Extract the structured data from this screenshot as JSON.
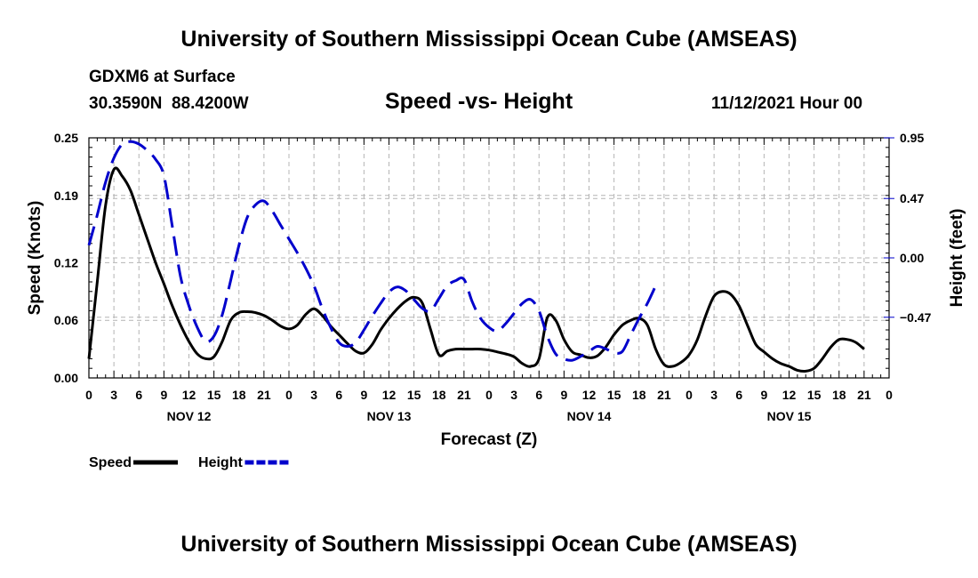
{
  "page": {
    "title_top": "University of Southern Mississippi Ocean Cube (AMSEAS)",
    "title_bottom": "University of Southern Mississippi Ocean Cube (AMSEAS)",
    "station": "GDXM6 at Surface",
    "coords": "30.3590N  88.4200W",
    "subtitle": "Speed -vs- Height",
    "timestamp": "11/12/2021 Hour 00"
  },
  "chart_data": {
    "type": "line",
    "title": "Speed -vs- Height",
    "xlabel": "Forecast (Z)",
    "ylabel_left": "Speed (Knots)",
    "ylabel_right": "Height (feet)",
    "x_range_hours": [
      0,
      96
    ],
    "left_ylim": [
      0,
      0.25
    ],
    "right_ylim": [
      -0.95,
      0.95
    ],
    "left_ticks": [
      0.0,
      0.06,
      0.12,
      0.19,
      0.25
    ],
    "left_tick_labels": [
      "0.00",
      "0.06",
      "0.12",
      "0.19",
      "0.25"
    ],
    "right_ticks": [
      -0.47,
      0.0,
      0.47,
      0.95
    ],
    "right_tick_labels": [
      "−0.47",
      "0.00",
      "0.47",
      "0.95"
    ],
    "x_ticks_hours": [
      0,
      3,
      6,
      9,
      12,
      15,
      18,
      21,
      24,
      27,
      30,
      33,
      36,
      39,
      42,
      45,
      48,
      51,
      54,
      57,
      60,
      63,
      66,
      69,
      72,
      75,
      78,
      81,
      84,
      87,
      90,
      93,
      96
    ],
    "x_tick_labels": [
      "0",
      "3",
      "6",
      "9",
      "12",
      "15",
      "18",
      "21",
      "0",
      "3",
      "6",
      "9",
      "12",
      "15",
      "18",
      "21",
      "0",
      "3",
      "6",
      "9",
      "12",
      "15",
      "18",
      "21",
      "0",
      "3",
      "6",
      "9",
      "12",
      "15",
      "18",
      "21",
      "0"
    ],
    "day_labels": [
      {
        "hour": 12,
        "label": "NOV 12"
      },
      {
        "hour": 36,
        "label": "NOV 13"
      },
      {
        "hour": 60,
        "label": "NOV 14"
      },
      {
        "hour": 84,
        "label": "NOV 15"
      }
    ],
    "grid": true,
    "legend": [
      {
        "name": "Speed",
        "color": "#000000",
        "style": "solid"
      },
      {
        "name": "Height",
        "color": "#0000cc",
        "style": "dashed"
      }
    ],
    "series": [
      {
        "name": "Speed",
        "axis": "left",
        "units": "knots",
        "color": "#000000",
        "points": [
          [
            0,
            0.02
          ],
          [
            1,
            0.1
          ],
          [
            2,
            0.18
          ],
          [
            3,
            0.217
          ],
          [
            4,
            0.21
          ],
          [
            5,
            0.195
          ],
          [
            6,
            0.17
          ],
          [
            7,
            0.145
          ],
          [
            8,
            0.12
          ],
          [
            9,
            0.098
          ],
          [
            10,
            0.075
          ],
          [
            11,
            0.055
          ],
          [
            12,
            0.038
          ],
          [
            13,
            0.025
          ],
          [
            14,
            0.02
          ],
          [
            15,
            0.022
          ],
          [
            16,
            0.038
          ],
          [
            17,
            0.06
          ],
          [
            18,
            0.068
          ],
          [
            19,
            0.069
          ],
          [
            20,
            0.068
          ],
          [
            21,
            0.065
          ],
          [
            22,
            0.06
          ],
          [
            23,
            0.054
          ],
          [
            24,
            0.051
          ],
          [
            25,
            0.055
          ],
          [
            26,
            0.066
          ],
          [
            27,
            0.072
          ],
          [
            28,
            0.065
          ],
          [
            29,
            0.054
          ],
          [
            30,
            0.045
          ],
          [
            31,
            0.036
          ],
          [
            32,
            0.028
          ],
          [
            33,
            0.026
          ],
          [
            34,
            0.035
          ],
          [
            35,
            0.05
          ],
          [
            36,
            0.062
          ],
          [
            37,
            0.072
          ],
          [
            38,
            0.08
          ],
          [
            39,
            0.084
          ],
          [
            40,
            0.078
          ],
          [
            41,
            0.05
          ],
          [
            42,
            0.024
          ],
          [
            43,
            0.028
          ],
          [
            44,
            0.03
          ],
          [
            45,
            0.03
          ],
          [
            46,
            0.03
          ],
          [
            47,
            0.03
          ],
          [
            48,
            0.029
          ],
          [
            49,
            0.027
          ],
          [
            50,
            0.025
          ],
          [
            51,
            0.022
          ],
          [
            52,
            0.015
          ],
          [
            53,
            0.012
          ],
          [
            54,
            0.02
          ],
          [
            55,
            0.063
          ],
          [
            56,
            0.06
          ],
          [
            57,
            0.04
          ],
          [
            58,
            0.027
          ],
          [
            59,
            0.024
          ],
          [
            60,
            0.021
          ],
          [
            61,
            0.023
          ],
          [
            62,
            0.032
          ],
          [
            63,
            0.045
          ],
          [
            64,
            0.055
          ],
          [
            65,
            0.06
          ],
          [
            66,
            0.062
          ],
          [
            67,
            0.055
          ],
          [
            68,
            0.03
          ],
          [
            69,
            0.014
          ],
          [
            70,
            0.012
          ],
          [
            71,
            0.016
          ],
          [
            72,
            0.024
          ],
          [
            73,
            0.04
          ],
          [
            74,
            0.065
          ],
          [
            75,
            0.085
          ],
          [
            76,
            0.09
          ],
          [
            77,
            0.087
          ],
          [
            78,
            0.075
          ],
          [
            79,
            0.055
          ],
          [
            80,
            0.035
          ],
          [
            81,
            0.027
          ],
          [
            82,
            0.02
          ],
          [
            83,
            0.015
          ],
          [
            84,
            0.012
          ],
          [
            85,
            0.008
          ],
          [
            86,
            0.007
          ],
          [
            87,
            0.01
          ],
          [
            88,
            0.02
          ],
          [
            89,
            0.032
          ],
          [
            90,
            0.04
          ],
          [
            91,
            0.04
          ],
          [
            92,
            0.037
          ],
          [
            93,
            0.03
          ]
        ]
      },
      {
        "name": "Height",
        "axis": "right",
        "units": "feet",
        "color": "#0000cc",
        "points": [
          [
            0,
            0.1
          ],
          [
            1,
            0.34
          ],
          [
            2,
            0.6
          ],
          [
            3,
            0.79
          ],
          [
            4,
            0.9
          ],
          [
            5,
            0.92
          ],
          [
            6,
            0.9
          ],
          [
            7,
            0.85
          ],
          [
            8,
            0.78
          ],
          [
            9,
            0.65
          ],
          [
            10,
            0.25
          ],
          [
            11,
            -0.15
          ],
          [
            12,
            -0.38
          ],
          [
            13,
            -0.55
          ],
          [
            14,
            -0.66
          ],
          [
            15,
            -0.62
          ],
          [
            16,
            -0.45
          ],
          [
            17,
            -0.18
          ],
          [
            18,
            0.1
          ],
          [
            19,
            0.32
          ],
          [
            20,
            0.42
          ],
          [
            21,
            0.45
          ],
          [
            22,
            0.37
          ],
          [
            23,
            0.26
          ],
          [
            24,
            0.15
          ],
          [
            25,
            0.04
          ],
          [
            26,
            -0.08
          ],
          [
            27,
            -0.22
          ],
          [
            28,
            -0.4
          ],
          [
            29,
            -0.55
          ],
          [
            30,
            -0.67
          ],
          [
            31,
            -0.7
          ],
          [
            32,
            -0.67
          ],
          [
            33,
            -0.57
          ],
          [
            34,
            -0.46
          ],
          [
            35,
            -0.36
          ],
          [
            36,
            -0.27
          ],
          [
            37,
            -0.23
          ],
          [
            38,
            -0.26
          ],
          [
            39,
            -0.33
          ],
          [
            40,
            -0.4
          ],
          [
            41,
            -0.42
          ],
          [
            42,
            -0.32
          ],
          [
            43,
            -0.22
          ],
          [
            44,
            -0.18
          ],
          [
            45,
            -0.17
          ],
          [
            46,
            -0.35
          ],
          [
            47,
            -0.48
          ],
          [
            48,
            -0.55
          ],
          [
            49,
            -0.58
          ],
          [
            50,
            -0.52
          ],
          [
            51,
            -0.44
          ],
          [
            52,
            -0.36
          ],
          [
            53,
            -0.33
          ],
          [
            54,
            -0.42
          ],
          [
            55,
            -0.62
          ],
          [
            56,
            -0.76
          ],
          [
            57,
            -0.8
          ],
          [
            58,
            -0.81
          ],
          [
            59,
            -0.78
          ],
          [
            60,
            -0.74
          ],
          [
            61,
            -0.7
          ],
          [
            62,
            -0.72
          ],
          [
            63,
            -0.75
          ],
          [
            64,
            -0.74
          ],
          [
            65,
            -0.61
          ],
          [
            66,
            -0.48
          ],
          [
            67,
            -0.36
          ],
          [
            68,
            -0.22
          ]
        ]
      }
    ]
  }
}
